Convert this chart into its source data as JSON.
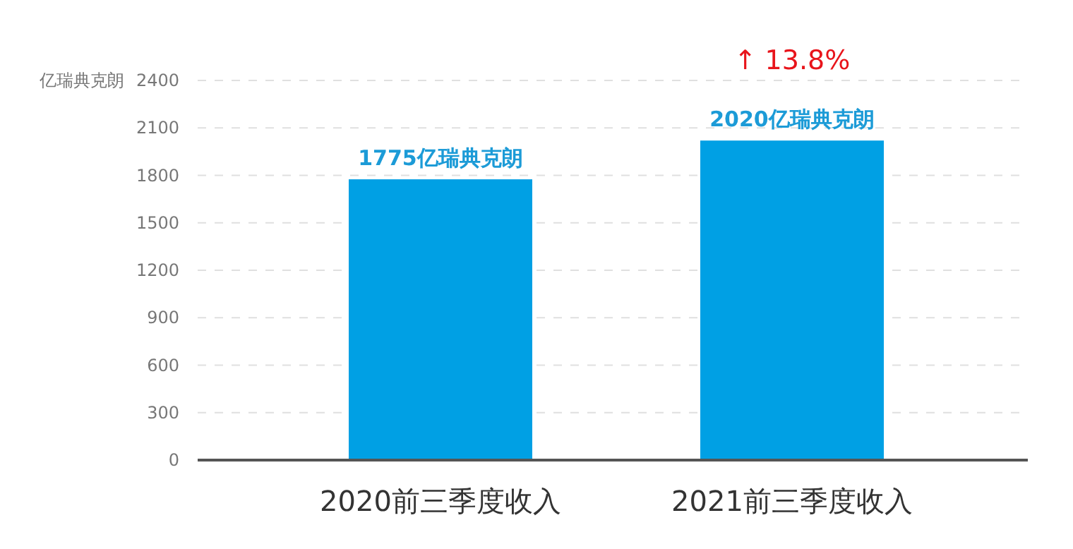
{
  "chart_data": {
    "type": "bar",
    "ylabel": "亿瑞典克朗",
    "categories": [
      "2020前三季度收入",
      "2021前三季度收入"
    ],
    "values": [
      1775,
      2020
    ],
    "color": "#00a0e4",
    "value_labels": [
      "1775亿瑞典克朗",
      "2020亿瑞典克朗"
    ],
    "ylim": [
      0,
      2400
    ],
    "yticks": [
      0,
      300,
      600,
      900,
      1200,
      1500,
      1800,
      2100,
      2400
    ],
    "grid": "y",
    "annotations": [
      "↑ 13.8%"
    ]
  }
}
